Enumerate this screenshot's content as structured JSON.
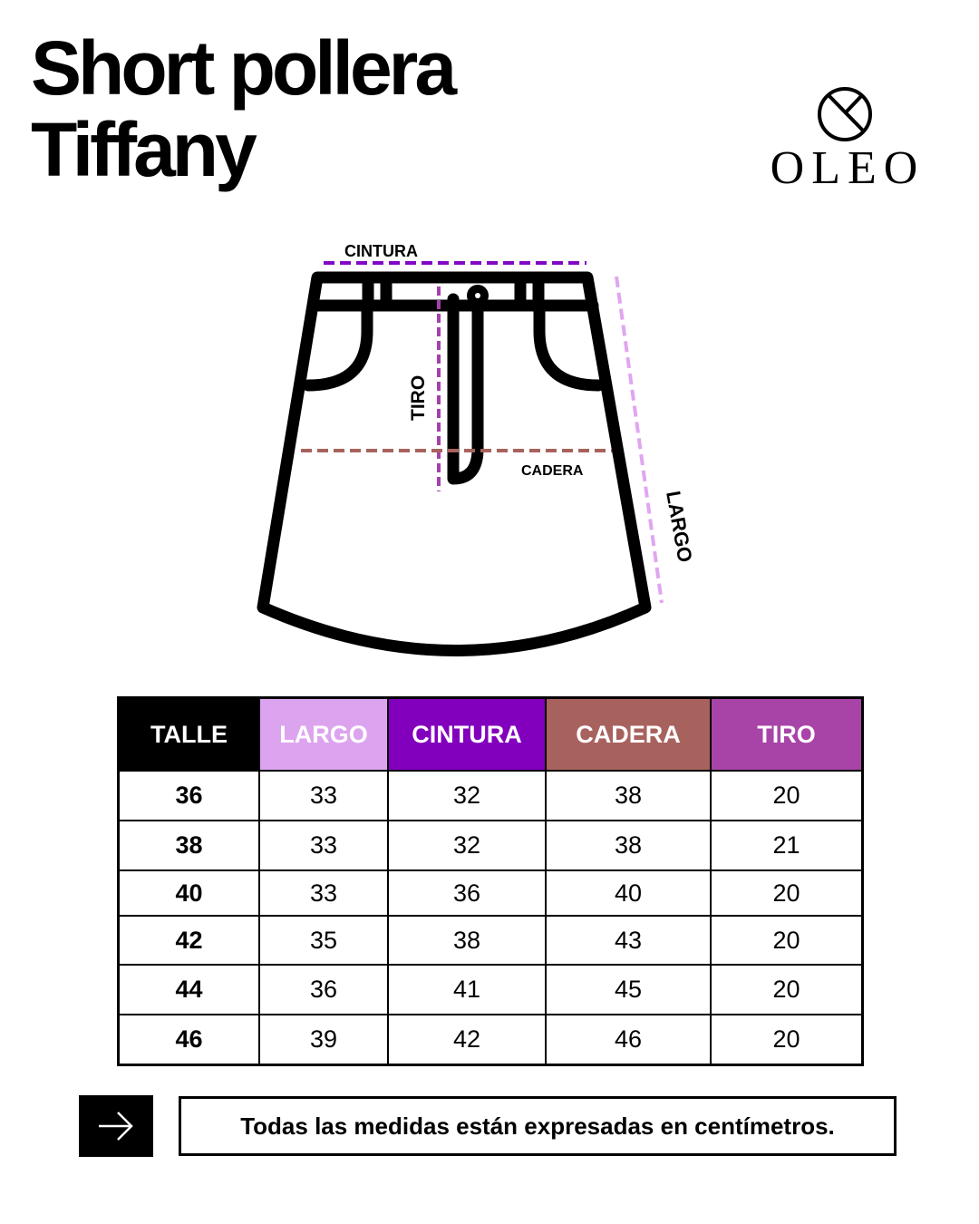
{
  "title": {
    "line1": "Short pollera",
    "line2": "Tiffany"
  },
  "brand": {
    "name": "OLEO"
  },
  "diagram": {
    "labels": {
      "cintura": "CINTURA",
      "tiro": "TIRO",
      "cadera": "CADERA",
      "largo": "LARGO"
    },
    "colors": {
      "cintura": "#8207c4",
      "tiro": "#a63fae",
      "cadera": "#a8625e",
      "largo": "#e0a6f0"
    }
  },
  "table": {
    "headers": [
      {
        "label": "TALLE",
        "color": "#000000"
      },
      {
        "label": "LARGO",
        "color": "#dca4ef"
      },
      {
        "label": "CINTURA",
        "color": "#8200bd"
      },
      {
        "label": "CADERA",
        "color": "#a8625e"
      },
      {
        "label": "TIRO",
        "color": "#a844a8"
      }
    ],
    "rows": [
      [
        "36",
        "33",
        "32",
        "38",
        "20"
      ],
      [
        "38",
        "33",
        "32",
        "38",
        "21"
      ],
      [
        "40",
        "33",
        "36",
        "40",
        "20"
      ],
      [
        "42",
        "35",
        "38",
        "43",
        "20"
      ],
      [
        "44",
        "36",
        "41",
        "45",
        "20"
      ],
      [
        "46",
        "39",
        "42",
        "46",
        "20"
      ]
    ]
  },
  "footer": {
    "icon": "arrow-right-icon",
    "note": "Todas las medidas están expresadas en centímetros."
  }
}
